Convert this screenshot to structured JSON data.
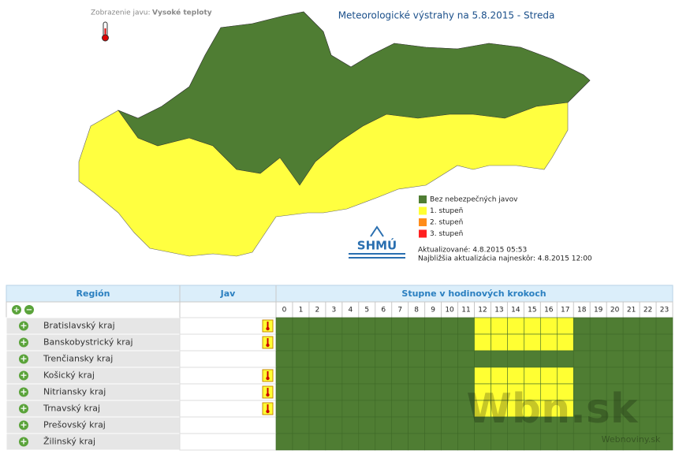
{
  "header": {
    "view_label": "Zobrazenie javu:",
    "view_value": "Vysoké teploty",
    "title": "Meteorologické výstrahy na 5.8.2015 - Streda"
  },
  "legend": [
    {
      "label": "Bez nebezpečných javov",
      "color": "#4f7d33"
    },
    {
      "label": "1. stupeň",
      "color": "#ffff33"
    },
    {
      "label": "2. stupeň",
      "color": "#ff8c1a"
    },
    {
      "label": "3. stupeň",
      "color": "#ff2020"
    }
  ],
  "logo": "SHMÚ",
  "updated": "Aktualizované: 4.8.2015 05:53",
  "next_update": "Najbližšia aktualizácia najneskôr: 4.8.2015 12:00",
  "table": {
    "headers": [
      "Región",
      "Jav",
      "Stupne v hodinových krokoch"
    ],
    "hours": [
      0,
      1,
      2,
      3,
      4,
      5,
      6,
      7,
      8,
      9,
      10,
      11,
      12,
      13,
      14,
      15,
      16,
      17,
      18,
      19,
      20,
      21,
      22,
      23
    ],
    "rows": [
      {
        "region": "Bratislavský kraj",
        "warning": true,
        "levels": [
          0,
          0,
          0,
          0,
          0,
          0,
          0,
          0,
          0,
          0,
          0,
          0,
          1,
          1,
          1,
          1,
          1,
          1,
          0,
          0,
          0,
          0,
          0,
          0
        ]
      },
      {
        "region": "Banskobystrický kraj",
        "warning": true,
        "levels": [
          0,
          0,
          0,
          0,
          0,
          0,
          0,
          0,
          0,
          0,
          0,
          0,
          1,
          1,
          1,
          1,
          1,
          1,
          0,
          0,
          0,
          0,
          0,
          0
        ]
      },
      {
        "region": "Trenčiansky kraj",
        "warning": false,
        "levels": [
          0,
          0,
          0,
          0,
          0,
          0,
          0,
          0,
          0,
          0,
          0,
          0,
          0,
          0,
          0,
          0,
          0,
          0,
          0,
          0,
          0,
          0,
          0,
          0
        ]
      },
      {
        "region": "Košický kraj",
        "warning": true,
        "levels": [
          0,
          0,
          0,
          0,
          0,
          0,
          0,
          0,
          0,
          0,
          0,
          0,
          1,
          1,
          1,
          1,
          1,
          1,
          0,
          0,
          0,
          0,
          0,
          0
        ]
      },
      {
        "region": "Nitriansky kraj",
        "warning": true,
        "levels": [
          0,
          0,
          0,
          0,
          0,
          0,
          0,
          0,
          0,
          0,
          0,
          0,
          1,
          1,
          1,
          1,
          1,
          1,
          0,
          0,
          0,
          0,
          0,
          0
        ]
      },
      {
        "region": "Trnavský kraj",
        "warning": true,
        "levels": [
          0,
          0,
          0,
          0,
          0,
          0,
          0,
          0,
          0,
          0,
          0,
          0,
          1,
          1,
          1,
          1,
          1,
          1,
          0,
          0,
          0,
          0,
          0,
          0
        ]
      },
      {
        "region": "Prešovský kraj",
        "warning": false,
        "levels": [
          0,
          0,
          0,
          0,
          0,
          0,
          0,
          0,
          0,
          0,
          0,
          0,
          0,
          0,
          0,
          0,
          0,
          0,
          0,
          0,
          0,
          0,
          0,
          0
        ]
      },
      {
        "region": "Žilinský kraj",
        "warning": false,
        "levels": [
          0,
          0,
          0,
          0,
          0,
          0,
          0,
          0,
          0,
          0,
          0,
          0,
          0,
          0,
          0,
          0,
          0,
          0,
          0,
          0,
          0,
          0,
          0,
          0
        ]
      }
    ]
  },
  "watermark": "Wbn.sk",
  "watermark_sub": "Webnoviny.sk"
}
